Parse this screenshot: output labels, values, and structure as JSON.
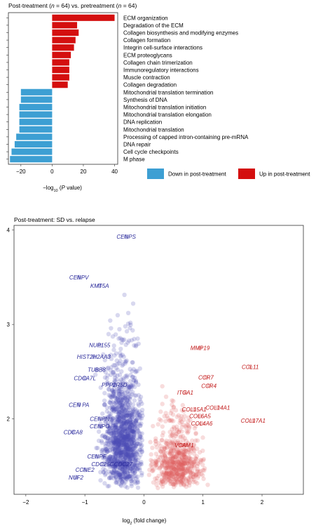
{
  "chart_data": [
    {
      "type": "bar",
      "title": "Post-treatment (n = 64) vs. pretreatment (n = 64)",
      "title_parts": [
        "Post-treatment (",
        "n",
        " = 64) vs. pretreatment (",
        "n",
        " = 64)"
      ],
      "xlabel": "−log10 (P value)",
      "xlabel_parts": [
        "−log",
        "10",
        " (",
        "P",
        " value)"
      ],
      "orientation": "horizontal",
      "xlim": [
        -28,
        42
      ],
      "xticks": [
        -20,
        0,
        20,
        40
      ],
      "legend_position": "bottom-right",
      "series": [
        {
          "name": "Down in post-treatment",
          "color": "#3d9fd3"
        },
        {
          "name": "Up in post-treatment",
          "color": "#d40f0f"
        }
      ],
      "categories": [
        "ECM organization",
        "Degradation of the ECM",
        "Collagen biosynthesis and modifying enzymes",
        "Collagen formation",
        "Integrin cell-surface interactions",
        "ECM proteoglycans",
        "Collagen chain trimerization",
        "Immunoregulatory interactions",
        "Muscle contraction",
        "Collagen degradation",
        "Mitochondrial translation termination",
        "Synthesis of DNA",
        "Mitochondrial translation initiation",
        "Mitochondrial translation elongation",
        "DNA replication",
        "Mitochondrial translation",
        "Processing of capped intron-containing pre-mRNA",
        "DNA repair",
        "Cell cycle checkpoints",
        "M phase"
      ],
      "values": [
        40,
        16,
        17,
        15,
        14,
        12,
        11,
        11,
        11,
        10,
        -20,
        -20,
        -21,
        -21,
        -21,
        -21,
        -23,
        -24,
        -26,
        -27
      ],
      "direction": [
        "up",
        "up",
        "up",
        "up",
        "up",
        "up",
        "up",
        "up",
        "up",
        "up",
        "down",
        "down",
        "down",
        "down",
        "down",
        "down",
        "down",
        "down",
        "down",
        "down"
      ]
    },
    {
      "type": "scatter",
      "title": "Post-treatment: SD vs. relapse",
      "xlabel": "log2 (fold change)",
      "xlabel_parts": [
        "log",
        "2",
        " (fold change)"
      ],
      "ylabel": "",
      "xlim": [
        -2.2,
        2.7
      ],
      "ylim": [
        1.2,
        4.05
      ],
      "xticks": [
        -2,
        -1,
        0,
        1,
        2
      ],
      "yticks": [
        2,
        3,
        4
      ],
      "grid": false,
      "series": [
        {
          "name": "",
          "direction": "down",
          "color": "#4d4db5"
        },
        {
          "name": "",
          "direction": "up",
          "color": "#e06060"
        }
      ],
      "labeled_points": [
        {
          "label": "CENPS",
          "x": -0.3,
          "y": 3.93,
          "direction": "down"
        },
        {
          "label": "CENPV",
          "x": -1.1,
          "y": 3.5,
          "direction": "down"
        },
        {
          "label": "KMT5A",
          "x": -0.75,
          "y": 3.41,
          "direction": "down"
        },
        {
          "label": "NUP155",
          "x": -0.75,
          "y": 2.78,
          "direction": "down"
        },
        {
          "label": "HIST2H2AA3",
          "x": -0.85,
          "y": 2.66,
          "direction": "down"
        },
        {
          "label": "TUBB8",
          "x": -0.8,
          "y": 2.52,
          "direction": "down"
        },
        {
          "label": "CDCA7L",
          "x": -1.0,
          "y": 2.43,
          "direction": "down"
        },
        {
          "label": "PPP2R5D",
          "x": -0.5,
          "y": 2.36,
          "direction": "down"
        },
        {
          "label": "CEN PA",
          "x": -1.1,
          "y": 2.15,
          "direction": "down"
        },
        {
          "label": "CENPN",
          "x": -0.75,
          "y": 2.0,
          "direction": "down"
        },
        {
          "label": "CENPO",
          "x": -0.75,
          "y": 1.92,
          "direction": "down"
        },
        {
          "label": "CDCA8",
          "x": -1.2,
          "y": 1.86,
          "direction": "down"
        },
        {
          "label": "CENPF",
          "x": -0.8,
          "y": 1.6,
          "direction": "down"
        },
        {
          "label": "CDC25C",
          "x": -0.7,
          "y": 1.52,
          "direction": "down"
        },
        {
          "label": "CDC27",
          "x": -0.35,
          "y": 1.52,
          "direction": "down"
        },
        {
          "label": "CCNE2",
          "x": -1.0,
          "y": 1.46,
          "direction": "down"
        },
        {
          "label": "NUF2",
          "x": -1.15,
          "y": 1.38,
          "direction": "down"
        },
        {
          "label": "MMP19",
          "x": 0.95,
          "y": 2.75,
          "direction": "up"
        },
        {
          "label": "CCL11",
          "x": 1.8,
          "y": 2.55,
          "direction": "up"
        },
        {
          "label": "CCR7",
          "x": 1.05,
          "y": 2.44,
          "direction": "up"
        },
        {
          "label": "CCR4",
          "x": 1.1,
          "y": 2.35,
          "direction": "up"
        },
        {
          "label": "ITGA1",
          "x": 0.7,
          "y": 2.28,
          "direction": "up"
        },
        {
          "label": "COL14A1",
          "x": 1.25,
          "y": 2.12,
          "direction": "up"
        },
        {
          "label": "COL15A1",
          "x": 0.85,
          "y": 2.1,
          "direction": "up"
        },
        {
          "label": "COL6A5",
          "x": 0.95,
          "y": 2.03,
          "direction": "up"
        },
        {
          "label": "COL17A1",
          "x": 1.85,
          "y": 1.98,
          "direction": "up"
        },
        {
          "label": "COL4A6",
          "x": 0.98,
          "y": 1.95,
          "direction": "up"
        },
        {
          "label": "VCAM1",
          "x": 0.68,
          "y": 1.72,
          "direction": "up"
        }
      ]
    }
  ]
}
